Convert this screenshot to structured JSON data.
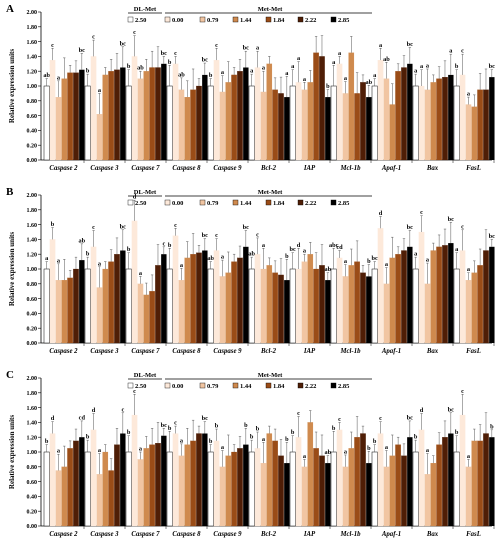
{
  "figure": {
    "colors": [
      "#ffffff",
      "#fde9da",
      "#f1c5a2",
      "#cf8a4e",
      "#9a4c17",
      "#4f1e06"
    ]
  },
  "chart_data": [
    {
      "type": "bar",
      "panel_label": "A",
      "ylabel": "Relative expression units",
      "ylim": [
        0,
        2.0
      ],
      "yticks": [
        "0.00",
        "0.20",
        "0.40",
        "0.60",
        "0.80",
        "1.00",
        "1.20",
        "1.40",
        "1.60",
        "1.80",
        "2.00"
      ],
      "legend": {
        "group1": "DL-Met",
        "group2": "Met-Met"
      },
      "categories": [
        "Caspase 2",
        "Caspase 3",
        "Caspase 7",
        "Caspase 8",
        "Caspase 9",
        "Bcl-2",
        "IAP",
        "Mcl-1b",
        "Apaf-1",
        "Bax",
        "FasL"
      ],
      "series": [
        {
          "name": "2.50",
          "values": [
            1.0,
            1.0,
            1.0,
            1.0,
            1.0,
            1.0,
            1.0,
            1.0,
            1.0,
            1.0,
            1.0
          ],
          "letters": [
            "ab",
            "b",
            "b",
            "b",
            "b",
            "a",
            "a",
            "a",
            "a",
            "a",
            "b"
          ]
        },
        {
          "name": "0.00",
          "values": [
            1.35,
            1.4,
            1.4,
            1.3,
            1.35,
            1.25,
            1.05,
            1.3,
            1.35,
            1.0,
            1.15
          ],
          "letters": [
            "c",
            "c",
            "c",
            "c",
            "c",
            "a",
            "a",
            "a",
            "a",
            "a",
            "c"
          ]
        },
        {
          "name": "0.79",
          "values": [
            0.85,
            0.62,
            1.1,
            0.95,
            0.92,
            0.92,
            0.95,
            0.9,
            1.1,
            0.95,
            0.75
          ],
          "letters": [
            "a",
            "a",
            "ab",
            "ab",
            "a",
            "a",
            "a",
            "a",
            "ab",
            "a",
            "a"
          ]
        },
        {
          "name": "1.44",
          "values": [
            1.1,
            1.15,
            1.2,
            0.85,
            1.05,
            1.3,
            1.05,
            1.45,
            0.75,
            1.05,
            0.72
          ]
        },
        {
          "name": "1.84",
          "values": [
            1.18,
            1.2,
            1.25,
            0.95,
            1.15,
            0.95,
            1.45,
            0.9,
            1.2,
            1.1,
            0.95
          ]
        },
        {
          "name": "2.22",
          "values": [
            1.18,
            1.22,
            1.25,
            1.0,
            1.2,
            0.9,
            1.4,
            1.05,
            1.25,
            1.12,
            0.95
          ]
        },
        {
          "name": "2.85",
          "values": [
            1.22,
            1.25,
            1.3,
            1.15,
            1.25,
            0.85,
            0.85,
            0.85,
            1.3,
            1.15,
            1.12
          ],
          "letters": [
            "bc",
            "bc",
            "bc",
            "bc",
            "bc",
            "a",
            "b",
            "ab",
            "bc",
            "a",
            "bc"
          ]
        }
      ]
    },
    {
      "type": "bar",
      "panel_label": "B",
      "ylabel": "Relative expression units",
      "ylim": [
        0,
        2.0
      ],
      "yticks": [
        "0.00",
        "0.20",
        "0.40",
        "0.60",
        "0.80",
        "1.00",
        "1.20",
        "1.40",
        "1.60",
        "1.80",
        "2.00"
      ],
      "legend": {
        "group1": "DL-Met",
        "group2": "Met-Met"
      },
      "categories": [
        "Caspase 2",
        "Caspase 3",
        "Caspase 7",
        "Caspase 8",
        "Caspase 9",
        "Bcl-2",
        "IAP",
        "Mcl-1b",
        "Apaf-1",
        "Bax",
        "FasL"
      ],
      "series": [
        {
          "name": "2.50",
          "values": [
            1.0,
            1.0,
            1.0,
            1.0,
            1.0,
            1.0,
            1.0,
            1.0,
            1.0,
            1.0,
            1.0
          ],
          "letters": [
            "a",
            "b",
            "b",
            "b",
            "ab",
            "ab",
            "bc",
            "abc",
            "bc",
            "a",
            "a"
          ]
        },
        {
          "name": "0.00",
          "values": [
            1.4,
            1.3,
            1.65,
            1.45,
            1.25,
            1.2,
            1.0,
            1.15,
            1.55,
            1.5,
            1.25
          ],
          "letters": [
            "b",
            "c",
            "d",
            "c",
            "c",
            "c",
            "d",
            "cd",
            "d",
            "c",
            "c"
          ]
        },
        {
          "name": "0.79",
          "values": [
            0.85,
            0.75,
            0.8,
            0.85,
            0.9,
            1.0,
            1.1,
            0.9,
            0.8,
            0.8,
            0.85
          ],
          "letters": [
            "a",
            "a",
            "a",
            "a",
            "a",
            "a",
            "a",
            "a",
            "a",
            "a",
            "a"
          ]
        },
        {
          "name": "1.44",
          "values": [
            0.85,
            1.0,
            0.65,
            1.15,
            0.95,
            1.05,
            1.2,
            1.05,
            1.15,
            1.25,
            0.95
          ]
        },
        {
          "name": "1.84",
          "values": [
            0.88,
            1.1,
            0.7,
            1.2,
            1.1,
            0.95,
            1.0,
            1.1,
            1.2,
            1.3,
            1.05
          ]
        },
        {
          "name": "2.22",
          "values": [
            1.0,
            1.2,
            1.05,
            1.22,
            1.15,
            0.92,
            1.05,
            0.95,
            1.25,
            1.32,
            1.25
          ]
        },
        {
          "name": "2.85",
          "values": [
            1.12,
            1.25,
            1.2,
            1.25,
            1.3,
            0.85,
            0.85,
            0.9,
            1.3,
            1.35,
            1.3
          ],
          "letters": [
            "ab",
            "bc",
            "c",
            "bc",
            "bc",
            "b",
            "ab",
            "b",
            "bc",
            "bc",
            "bc"
          ]
        }
      ]
    },
    {
      "type": "bar",
      "panel_label": "C",
      "ylabel": "Relative expression units",
      "ylim": [
        0,
        2.0
      ],
      "yticks": [
        "0.00",
        "0.20",
        "0.40",
        "0.60",
        "0.80",
        "1.00",
        "1.20",
        "1.40",
        "1.60",
        "1.80",
        "2.00"
      ],
      "legend": {
        "group1": "DL-Met",
        "group2": "Met-Met"
      },
      "categories": [
        "Caspase 2",
        "Caspase 3",
        "Caspase 7",
        "Caspase 8",
        "Caspase 9",
        "Bcl-2",
        "IAP",
        "Mcl-1b",
        "Apaf-1",
        "Bax",
        "FasL"
      ],
      "series": [
        {
          "name": "2.50",
          "values": [
            1.0,
            1.0,
            1.0,
            1.0,
            1.0,
            1.0,
            1.0,
            1.0,
            1.0,
            1.0,
            1.0
          ],
          "letters": [
            "b",
            "b",
            "b",
            "b",
            "b",
            "b",
            "b",
            "b",
            "b",
            "b",
            "b"
          ]
        },
        {
          "name": "0.00",
          "values": [
            1.25,
            1.3,
            1.5,
            1.25,
            1.15,
            1.05,
            1.2,
            1.3,
            1.25,
            1.3,
            1.5
          ],
          "letters": [
            "d",
            "d",
            "c",
            "c",
            "b",
            "b",
            "c",
            "c",
            "c",
            "d",
            "c"
          ]
        },
        {
          "name": "0.79",
          "values": [
            0.75,
            0.7,
            0.9,
            0.95,
            0.8,
            0.85,
            0.8,
            0.8,
            0.8,
            0.7,
            0.8
          ],
          "letters": [
            "a",
            "a",
            "a",
            "a",
            "a",
            "a",
            "a",
            "a",
            "a",
            "a",
            "a"
          ]
        },
        {
          "name": "1.44",
          "values": [
            0.8,
            1.0,
            1.05,
            1.1,
            0.95,
            1.25,
            1.4,
            1.05,
            0.95,
            0.85,
            1.15
          ]
        },
        {
          "name": "1.84",
          "values": [
            1.05,
            0.75,
            1.1,
            1.15,
            1.0,
            1.15,
            1.05,
            1.2,
            1.1,
            1.1,
            1.15
          ]
        },
        {
          "name": "2.22",
          "values": [
            1.15,
            1.1,
            1.12,
            1.25,
            1.05,
            0.95,
            0.95,
            1.25,
            0.95,
            1.2,
            1.25
          ]
        },
        {
          "name": "2.85",
          "values": [
            1.2,
            1.25,
            1.22,
            1.25,
            1.1,
            0.85,
            0.85,
            0.85,
            1.2,
            1.25,
            1.2
          ],
          "letters": [
            "cd",
            "c",
            "bc",
            "bc",
            "b",
            "b",
            "ab",
            "b",
            "bc",
            "bc",
            "b"
          ]
        }
      ]
    }
  ]
}
